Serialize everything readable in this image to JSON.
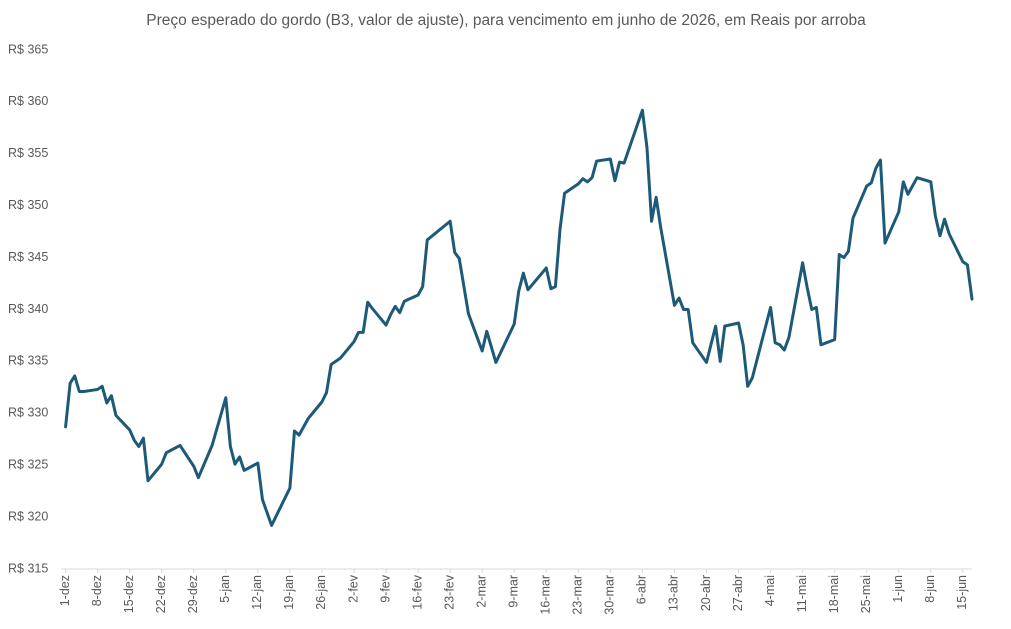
{
  "chart_data": {
    "type": "line",
    "title": "Preço esperado do gordo (B3, valor de ajuste), para vencimento em junho de 2026, em Reais por arroba",
    "color": "#1d5a78",
    "x": [
      "1-dez",
      "2-dez",
      "3-dez",
      "4-dez",
      "5-dez",
      "8-dez",
      "9-dez",
      "10-dez",
      "11-dez",
      "12-dez",
      "15-dez",
      "16-dez",
      "17-dez",
      "18-dez",
      "19-dez",
      "22-dez",
      "23-dez",
      "26-dez",
      "29-dez",
      "30-dez",
      "2-jan",
      "5-jan",
      "6-jan",
      "7-jan",
      "8-jan",
      "9-jan",
      "12-jan",
      "13-jan",
      "15-jan",
      "16-jan",
      "19-jan",
      "20-jan",
      "21-jan",
      "23-jan",
      "26-jan",
      "27-jan",
      "28-jan",
      "30-jan",
      "2-fev",
      "3-fev",
      "4-fev",
      "5-fev",
      "6-fev",
      "9-fev",
      "10-fev",
      "11-fev",
      "12-fev",
      "13-fev",
      "16-fev",
      "17-fev",
      "18-fev",
      "23-fev",
      "24-fev",
      "25-fev",
      "27-fev",
      "2-mar",
      "3-mar",
      "5-mar",
      "9-mar",
      "10-mar",
      "11-mar",
      "12-mar",
      "16-mar",
      "17-mar",
      "18-mar",
      "19-mar",
      "20-mar",
      "23-mar",
      "24-mar",
      "25-mar",
      "26-mar",
      "27-mar",
      "30-mar",
      "31-mar",
      "1-abr",
      "2-abr",
      "6-abr",
      "7-abr",
      "8-abr",
      "9-abr",
      "10-abr",
      "13-abr",
      "14-abr",
      "15-abr",
      "16-abr",
      "17-abr",
      "20-abr",
      "22-abr",
      "23-abr",
      "24-abr",
      "27-abr",
      "28-abr",
      "29-abr",
      "30-abr",
      "4-mai",
      "5-mai",
      "6-mai",
      "7-mai",
      "8-mai",
      "11-mai",
      "12-mai",
      "13-mai",
      "14-mai",
      "15-mai",
      "18-mai",
      "19-mai",
      "20-mai",
      "21-mai",
      "22-mai",
      "25-mai",
      "26-mai",
      "27-mai",
      "28-mai",
      "29-mai",
      "1-jun",
      "2-jun",
      "3-jun",
      "5-jun",
      "8-jun",
      "9-jun",
      "10-jun",
      "11-jun",
      "12-jun",
      "15-jun",
      "16-jun",
      "17-jun"
    ],
    "values": [
      328.7,
      332.9,
      333.6,
      332.1,
      332.1,
      332.3,
      332.6,
      331.0,
      331.7,
      329.8,
      328.4,
      327.4,
      326.8,
      327.6,
      323.5,
      325.1,
      326.2,
      326.9,
      324.9,
      323.8,
      326.9,
      331.5,
      326.8,
      325.1,
      325.8,
      324.5,
      325.2,
      321.7,
      319.2,
      320.1,
      322.8,
      328.3,
      327.9,
      329.5,
      331.1,
      332.0,
      334.7,
      335.3,
      336.9,
      337.8,
      337.8,
      340.7,
      340.1,
      338.5,
      339.5,
      340.3,
      339.7,
      340.8,
      341.4,
      342.2,
      346.7,
      348.5,
      345.5,
      344.9,
      339.6,
      336.0,
      337.9,
      334.9,
      338.6,
      341.8,
      343.5,
      341.9,
      344.0,
      342.0,
      342.2,
      347.7,
      351.2,
      352.1,
      352.6,
      352.3,
      352.7,
      354.3,
      354.5,
      352.4,
      354.2,
      354.1,
      359.2,
      355.6,
      348.5,
      350.8,
      347.9,
      340.4,
      341.1,
      340.0,
      340.0,
      336.8,
      334.9,
      338.4,
      335.0,
      338.4,
      338.7,
      336.6,
      332.6,
      333.4,
      340.2,
      336.8,
      336.6,
      336.1,
      337.3,
      344.5,
      342.1,
      340.0,
      340.2,
      336.6,
      337.1,
      345.3,
      345.0,
      345.6,
      348.8,
      351.9,
      352.2,
      353.6,
      354.4,
      346.4,
      349.4,
      352.3,
      351.1,
      352.7,
      352.3,
      349.0,
      347.1,
      348.7,
      347.3,
      344.6,
      344.3,
      341.0
    ],
    "xlim": [
      "30-nov",
      "17-jun"
    ],
    "xticks": [
      "1-dez",
      "8-dez",
      "15-dez",
      "22-dez",
      "29-dez",
      "5-jan",
      "12-jan",
      "19-jan",
      "26-jan",
      "2-fev",
      "9-fev",
      "16-fev",
      "23-fev",
      "2-mar",
      "9-mar",
      "16-mar",
      "23-mar",
      "30-mar",
      "6-abr",
      "13-abr",
      "20-abr",
      "27-abr",
      "4-mai",
      "11-mai",
      "18-mai",
      "25-mai",
      "1-jun",
      "8-jun",
      "15-jun"
    ],
    "ylim": [
      315,
      365
    ],
    "yticks": [
      {
        "value": 315,
        "label": "R$ 315"
      },
      {
        "value": 320,
        "label": "R$ 320"
      },
      {
        "value": 325,
        "label": "R$ 325"
      },
      {
        "value": 330,
        "label": "R$ 330"
      },
      {
        "value": 335,
        "label": "R$ 335"
      },
      {
        "value": 340,
        "label": "R$ 340"
      },
      {
        "value": 345,
        "label": "R$ 345"
      },
      {
        "value": 350,
        "label": "R$ 350"
      },
      {
        "value": 355,
        "label": "R$ 355"
      },
      {
        "value": 360,
        "label": "R$ 360"
      },
      {
        "value": 365,
        "label": "R$ 365"
      }
    ],
    "grid": false
  }
}
